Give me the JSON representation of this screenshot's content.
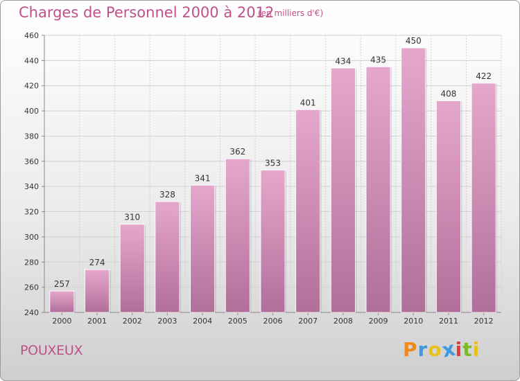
{
  "colors": {
    "accent": "#c0508a",
    "bar_top": "#e6a7cd",
    "bar_bottom": "#b06f99",
    "grid": "#d0d0d0",
    "axis_text": "#333333",
    "logo": [
      "#f08a1c",
      "#3a9be0",
      "#e8c21c",
      "#3a9be0",
      "#e23a3a",
      "#7ab929",
      "#e8c21c"
    ]
  },
  "header": {
    "title": "Charges de Personnel 2000 à 2012",
    "subtitle": "(en milliers d'€)"
  },
  "footer": {
    "commune": "POUXEUX",
    "logo_text": "Proxiti"
  },
  "chart_data": {
    "type": "bar",
    "categories": [
      "2000",
      "2001",
      "2002",
      "2003",
      "2004",
      "2005",
      "2006",
      "2007",
      "2008",
      "2009",
      "2010",
      "2011",
      "2012"
    ],
    "values": [
      257,
      274,
      310,
      328,
      341,
      362,
      353,
      401,
      434,
      435,
      450,
      408,
      422
    ],
    "ylim": [
      240,
      460
    ],
    "yticks": [
      240,
      260,
      280,
      300,
      320,
      340,
      360,
      380,
      400,
      420,
      440,
      460
    ],
    "grid": true
  }
}
